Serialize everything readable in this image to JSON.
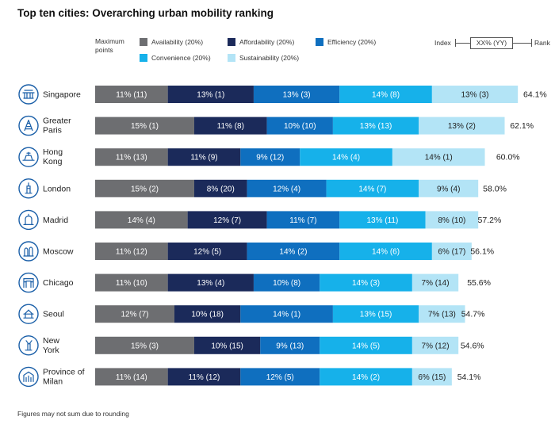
{
  "title": "Top ten cities: Overarching urban mobility ranking",
  "legend_heading": "Maximum points",
  "legend": [
    {
      "label": "Availability (20%)",
      "color": "#6d6e71"
    },
    {
      "label": "Affordability (20%)",
      "color": "#1b2a5a"
    },
    {
      "label": "Efficiency (20%)",
      "color": "#0f6fbf"
    },
    {
      "label": "Convenience (20%)",
      "color": "#16b1ea"
    },
    {
      "label": "Sustainability (20%)",
      "color": "#b3e4f6"
    }
  ],
  "index_key": {
    "left": "Index",
    "box": "XX% (YY)",
    "right": "Rank"
  },
  "footnote": "Figures may not sum due to rounding",
  "chart_data": {
    "type": "bar",
    "orientation": "horizontal",
    "stacked": true,
    "categories": [
      "Singapore",
      "Greater Paris",
      "Hong Kong",
      "London",
      "Madrid",
      "Moscow",
      "Chicago",
      "Seoul",
      "New York",
      "Province of Milan"
    ],
    "series": [
      {
        "name": "Availability (20%)",
        "color": "#6d6e71",
        "text_color": "#ffffff",
        "values": [
          11,
          15,
          11,
          15,
          14,
          11,
          11,
          12,
          15,
          11
        ],
        "labels": [
          "11% (11)",
          "15% (1)",
          "11% (13)",
          "15% (2)",
          "14% (4)",
          "11% (12)",
          "11% (10)",
          "12% (7)",
          "15% (3)",
          "11% (14)"
        ]
      },
      {
        "name": "Affordability (20%)",
        "color": "#1b2a5a",
        "text_color": "#ffffff",
        "values": [
          13,
          11,
          11,
          8,
          12,
          12,
          13,
          10,
          10,
          11
        ],
        "labels": [
          "13% (1)",
          "11% (8)",
          "11% (9)",
          "8% (20)",
          "12% (7)",
          "12% (5)",
          "13% (4)",
          "10% (18)",
          "10% (15)",
          "11% (12)"
        ]
      },
      {
        "name": "Efficiency (20%)",
        "color": "#0f6fbf",
        "text_color": "#ffffff",
        "values": [
          13,
          10,
          9,
          12,
          11,
          14,
          10,
          14,
          9,
          12
        ],
        "labels": [
          "13% (3)",
          "10% (10)",
          "9% (12)",
          "12% (4)",
          "11% (7)",
          "14% (2)",
          "10% (8)",
          "14% (1)",
          "9% (13)",
          "12% (5)"
        ]
      },
      {
        "name": "Convenience (20%)",
        "color": "#16b1ea",
        "text_color": "#ffffff",
        "values": [
          14,
          13,
          14,
          14,
          13,
          14,
          14,
          13,
          14,
          14
        ],
        "labels": [
          "14% (8)",
          "13% (13)",
          "14% (4)",
          "14% (7)",
          "13% (11)",
          "14% (6)",
          "14% (3)",
          "13% (15)",
          "14% (5)",
          "14% (2)"
        ]
      },
      {
        "name": "Sustainability (20%)",
        "color": "#b3e4f6",
        "text_color": "#222222",
        "values": [
          13,
          13,
          14,
          9,
          8,
          6,
          7,
          7,
          7,
          6
        ],
        "labels": [
          "13% (3)",
          "13% (2)",
          "14% (1)",
          "9% (4)",
          "8% (10)",
          "6% (17)",
          "7% (14)",
          "7% (13)",
          "7% (12)",
          "6% (15)"
        ]
      }
    ],
    "totals": [
      64.1,
      62.1,
      60.0,
      58.0,
      57.2,
      56.1,
      55.6,
      54.7,
      54.6,
      54.1
    ],
    "total_labels": [
      "64.1%",
      "62.1%",
      "60.0%",
      "58.0%",
      "57.2%",
      "56.1%",
      "55.6%",
      "54.7%",
      "54.6%",
      "54.1%"
    ],
    "xlim": [
      0,
      64.1
    ],
    "grid": false,
    "legend_position": "top"
  }
}
